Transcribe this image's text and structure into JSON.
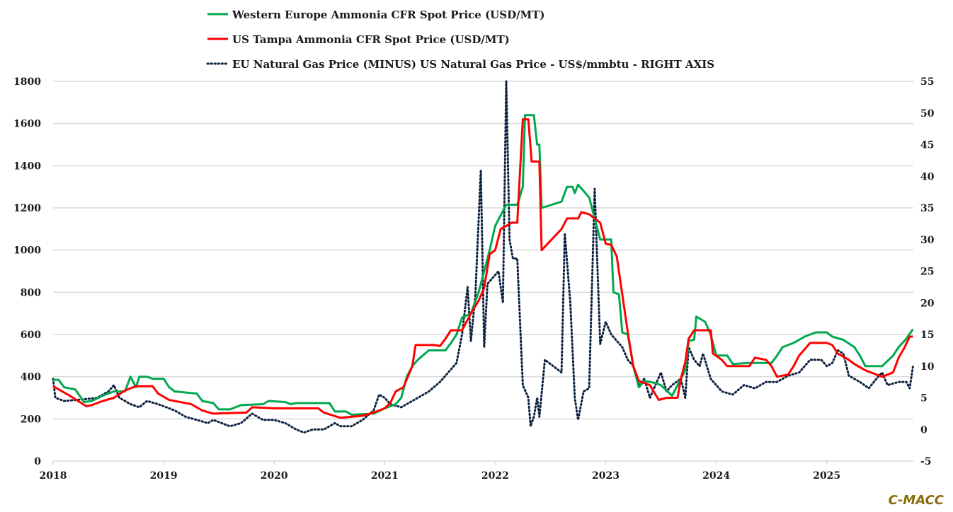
{
  "chart_data": {
    "type": "line",
    "title": "",
    "brand": "C-MACC",
    "xlabel": "",
    "ylabel": "",
    "xlim": [
      2018,
      2025.78
    ],
    "ylim": [
      0,
      1800
    ],
    "ylim_right": [
      -5,
      55
    ],
    "grid": true,
    "legend_position": "top-center",
    "x_ticks": [
      "2018",
      "2019",
      "2020",
      "2021",
      "2022",
      "2023",
      "2024",
      "2025"
    ],
    "y_ticks_left": [
      "0",
      "200",
      "400",
      "600",
      "800",
      "1000",
      "1200",
      "1400",
      "1600",
      "1800"
    ],
    "y_ticks_right": [
      "-5",
      "0",
      "5",
      "10",
      "15",
      "20",
      "25",
      "30",
      "35",
      "40",
      "45",
      "50",
      "55"
    ],
    "series": [
      {
        "name": "Western Europe Ammonia CFR Spot Price (USD/MT)",
        "color": "#00a84f",
        "axis": "left",
        "style": "solid",
        "x": [
          2018.0,
          2018.05,
          2018.1,
          2018.2,
          2018.28,
          2018.35,
          2018.45,
          2018.55,
          2018.65,
          2018.7,
          2018.75,
          2018.78,
          2018.85,
          2018.9,
          2019.0,
          2019.05,
          2019.1,
          2019.3,
          2019.35,
          2019.45,
          2019.5,
          2019.6,
          2019.7,
          2019.9,
          2019.95,
          2020.1,
          2020.15,
          2020.2,
          2020.5,
          2020.55,
          2020.65,
          2020.7,
          2020.9,
          2021.0,
          2021.1,
          2021.15,
          2021.2,
          2021.25,
          2021.3,
          2021.4,
          2021.55,
          2021.6,
          2021.65,
          2021.7,
          2021.78,
          2021.85,
          2021.9,
          2021.95,
          2022.0,
          2022.1,
          2022.2,
          2022.25,
          2022.27,
          2022.35,
          2022.38,
          2022.4,
          2022.42,
          2022.6,
          2022.65,
          2022.7,
          2022.72,
          2022.75,
          2022.8,
          2022.85,
          2022.9,
          2022.95,
          2023.05,
          2023.07,
          2023.12,
          2023.15,
          2023.2,
          2023.25,
          2023.3,
          2023.35,
          2023.45,
          2023.5,
          2023.6,
          2023.65,
          2023.72,
          2023.75,
          2023.8,
          2023.82,
          2023.9,
          2023.95,
          2024.0,
          2024.1,
          2024.15,
          2024.3,
          2024.5,
          2024.55,
          2024.6,
          2024.7,
          2024.8,
          2024.9,
          2025.0,
          2025.05,
          2025.15,
          2025.25,
          2025.3,
          2025.35,
          2025.5,
          2025.6,
          2025.65,
          2025.72,
          2025.76,
          2025.78
        ],
        "values": [
          385,
          385,
          350,
          340,
          280,
          285,
          310,
          330,
          330,
          400,
          350,
          400,
          400,
          390,
          390,
          350,
          330,
          320,
          285,
          275,
          245,
          245,
          265,
          270,
          285,
          280,
          270,
          275,
          275,
          235,
          235,
          220,
          225,
          250,
          270,
          300,
          400,
          450,
          480,
          525,
          525,
          560,
          600,
          680,
          700,
          800,
          900,
          1000,
          1115,
          1215,
          1215,
          1300,
          1640,
          1640,
          1500,
          1500,
          1200,
          1230,
          1300,
          1300,
          1270,
          1310,
          1280,
          1250,
          1150,
          1050,
          1050,
          800,
          790,
          610,
          600,
          450,
          350,
          380,
          370,
          360,
          310,
          360,
          430,
          570,
          575,
          685,
          660,
          600,
          500,
          500,
          460,
          465,
          465,
          500,
          540,
          560,
          590,
          610,
          610,
          590,
          575,
          540,
          500,
          450,
          450,
          500,
          540,
          580,
          610,
          625
        ]
      },
      {
        "name": "US Tampa Ammonia CFR Spot Price (USD/MT)",
        "color": "#ff0000",
        "axis": "left",
        "style": "solid",
        "x": [
          2018.0,
          2018.05,
          2018.15,
          2018.3,
          2018.35,
          2018.45,
          2018.55,
          2018.65,
          2018.75,
          2018.9,
          2018.95,
          2019.05,
          2019.25,
          2019.35,
          2019.45,
          2019.75,
          2019.8,
          2020.0,
          2020.4,
          2020.45,
          2020.6,
          2020.8,
          2020.9,
          2021.0,
          2021.05,
          2021.1,
          2021.17,
          2021.25,
          2021.28,
          2021.45,
          2021.5,
          2021.55,
          2021.6,
          2021.7,
          2021.78,
          2021.85,
          2021.9,
          2021.95,
          2022.0,
          2022.05,
          2022.15,
          2022.2,
          2022.25,
          2022.3,
          2022.33,
          2022.4,
          2022.42,
          2022.6,
          2022.65,
          2022.75,
          2022.78,
          2022.85,
          2022.95,
          2023.0,
          2023.05,
          2023.1,
          2023.15,
          2023.2,
          2023.25,
          2023.3,
          2023.4,
          2023.48,
          2023.55,
          2023.65,
          2023.68,
          2023.72,
          2023.75,
          2023.8,
          2023.95,
          2023.97,
          2024.05,
          2024.1,
          2024.3,
          2024.35,
          2024.45,
          2024.5,
          2024.55,
          2024.65,
          2024.7,
          2024.75,
          2024.8,
          2024.85,
          2025.0,
          2025.05,
          2025.1,
          2025.2,
          2025.25,
          2025.35,
          2025.45,
          2025.5,
          2025.55,
          2025.6,
          2025.65,
          2025.7,
          2025.75,
          2025.78
        ],
        "values": [
          355,
          340,
          310,
          260,
          265,
          285,
          300,
          335,
          355,
          355,
          320,
          290,
          270,
          240,
          225,
          230,
          255,
          250,
          250,
          230,
          205,
          215,
          230,
          250,
          275,
          330,
          350,
          450,
          550,
          550,
          545,
          580,
          620,
          620,
          700,
          760,
          820,
          980,
          1000,
          1100,
          1130,
          1130,
          1620,
          1620,
          1420,
          1420,
          1000,
          1100,
          1150,
          1150,
          1180,
          1170,
          1130,
          1030,
          1025,
          970,
          790,
          610,
          450,
          380,
          360,
          290,
          300,
          300,
          390,
          470,
          580,
          620,
          620,
          510,
          480,
          450,
          450,
          490,
          480,
          450,
          400,
          410,
          450,
          500,
          530,
          560,
          560,
          550,
          510,
          480,
          460,
          430,
          410,
          400,
          410,
          420,
          490,
          535,
          590,
          590
        ]
      },
      {
        "name": "EU Natural Gas Price (MINUS) US Natural Gas Price - US$/mmbtu - RIGHT AXIS",
        "color": "#0d2240",
        "axis": "right",
        "style": "dotted",
        "x": [
          2018.0,
          2018.02,
          2018.1,
          2018.3,
          2018.4,
          2018.5,
          2018.55,
          2018.6,
          2018.7,
          2018.78,
          2018.85,
          2018.95,
          2019.1,
          2019.2,
          2019.3,
          2019.4,
          2019.45,
          2019.6,
          2019.7,
          2019.8,
          2019.9,
          2020.0,
          2020.1,
          2020.2,
          2020.27,
          2020.35,
          2020.45,
          2020.55,
          2020.6,
          2020.7,
          2020.8,
          2020.9,
          2020.95,
          2021.0,
          2021.05,
          2021.15,
          2021.3,
          2021.4,
          2021.5,
          2021.6,
          2021.65,
          2021.7,
          2021.75,
          2021.78,
          2021.82,
          2021.87,
          2021.9,
          2021.93,
          2021.98,
          2022.03,
          2022.07,
          2022.1,
          2022.13,
          2022.16,
          2022.2,
          2022.25,
          2022.3,
          2022.32,
          2022.35,
          2022.38,
          2022.4,
          2022.45,
          2022.6,
          2022.63,
          2022.68,
          2022.72,
          2022.75,
          2022.8,
          2022.85,
          2022.9,
          2022.95,
          2023.0,
          2023.05,
          2023.1,
          2023.15,
          2023.2,
          2023.25,
          2023.3,
          2023.35,
          2023.4,
          2023.45,
          2023.5,
          2023.55,
          2023.6,
          2023.68,
          2023.72,
          2023.75,
          2023.8,
          2023.85,
          2023.88,
          2023.95,
          2024.05,
          2024.15,
          2024.25,
          2024.35,
          2024.45,
          2024.55,
          2024.65,
          2024.75,
          2024.85,
          2024.95,
          2025.0,
          2025.05,
          2025.1,
          2025.15,
          2025.2,
          2025.3,
          2025.38,
          2025.45,
          2025.5,
          2025.55,
          2025.65,
          2025.72,
          2025.75,
          2025.78
        ],
        "values": [
          8,
          5,
          4.5,
          4.8,
          5,
          6,
          7,
          5,
          4,
          3.5,
          4.5,
          4,
          3,
          2,
          1.5,
          1,
          1.5,
          0.5,
          1,
          2.5,
          1.5,
          1.5,
          1,
          0,
          -0.5,
          0,
          0,
          1,
          0.5,
          0.5,
          1.5,
          3,
          5.5,
          5,
          4,
          3.5,
          5,
          6,
          7.5,
          9.5,
          10.5,
          15,
          22.5,
          14,
          21,
          41,
          13,
          23,
          24,
          25,
          20,
          55,
          30,
          27,
          27,
          7,
          5,
          0.5,
          2,
          5,
          2,
          11,
          9,
          31,
          20,
          5,
          1.5,
          6,
          6.5,
          38,
          13.5,
          17,
          15,
          14,
          13,
          11,
          10,
          7,
          8,
          5,
          7,
          9,
          6,
          7,
          8,
          5,
          13,
          11,
          10,
          12,
          8,
          6,
          5.5,
          7,
          6.5,
          7.5,
          7.5,
          8.5,
          9,
          11,
          11,
          10,
          10.5,
          12.5,
          12,
          8.5,
          7.5,
          6.5,
          8,
          9,
          7,
          7.5,
          7.5,
          6.5,
          10
        ]
      }
    ]
  }
}
